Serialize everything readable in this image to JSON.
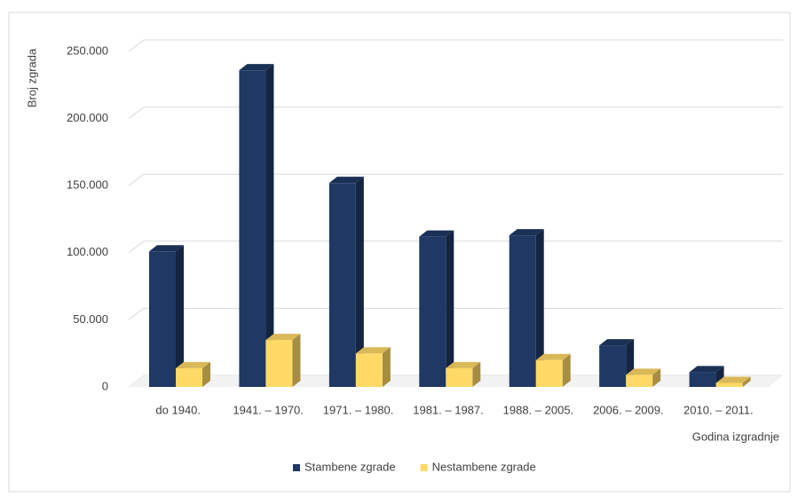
{
  "chart_data": {
    "type": "bar3d",
    "y_label": "Broj zgrada",
    "x_label": "Godina izgradnje",
    "categories": [
      "do 1940.",
      "1941. – 1970.",
      "1971. – 1980.",
      "1981. – 1987.",
      "1988. – 2005.",
      "2006. – 2009.",
      "2010. – 2011."
    ],
    "series": [
      {
        "name": "Stambene zgrade",
        "color": "#1f3864",
        "values": [
          101000,
          236000,
          152000,
          112000,
          113000,
          31000,
          11000
        ]
      },
      {
        "name": "Nestambene zgrade",
        "color": "#ffd966",
        "values": [
          14000,
          35000,
          25000,
          14000,
          20000,
          9000,
          3000
        ]
      }
    ],
    "ylim": [
      0,
      250000
    ],
    "yticks": [
      0,
      {
        "value": 50000,
        "label": "50.000"
      },
      {
        "value": 100000,
        "label": "100.000"
      },
      {
        "value": 150000,
        "label": "150.000"
      },
      {
        "value": 200000,
        "label": "200.000"
      },
      {
        "value": 250000,
        "label": "250.000"
      }
    ],
    "grid": true,
    "legend": "bottom"
  }
}
